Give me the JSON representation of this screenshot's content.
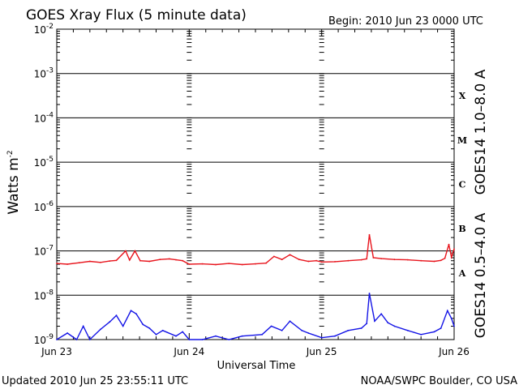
{
  "chart_data": {
    "type": "line",
    "title": "GOES Xray Flux (5 minute data)",
    "begin": "Begin:  2010 Jun 23 0000 UTC",
    "ylabel": "Watts m",
    "ylabel_sup": "-2",
    "xlabel": "Universal Time",
    "updated": "Updated 2010 Jun 25 23:55:11 UTC",
    "credit": "NOAA/SWPC Boulder, CO USA",
    "y_scale": "log",
    "ylim": [
      1e-09,
      0.01
    ],
    "y_ticks": [
      {
        "base": "10",
        "exp": "-2",
        "value": 0.01
      },
      {
        "base": "10",
        "exp": "-3",
        "value": 0.001
      },
      {
        "base": "10",
        "exp": "-4",
        "value": 0.0001
      },
      {
        "base": "10",
        "exp": "-5",
        "value": 1e-05
      },
      {
        "base": "10",
        "exp": "-6",
        "value": 1e-06
      },
      {
        "base": "10",
        "exp": "-7",
        "value": 1e-07
      },
      {
        "base": "10",
        "exp": "-8",
        "value": 1e-08
      },
      {
        "base": "10",
        "exp": "-9",
        "value": 1e-09
      }
    ],
    "x_ticks": [
      "Jun 23",
      "Jun 24",
      "Jun 25",
      "Jun 26"
    ],
    "xlim_days": [
      0,
      3
    ],
    "flare_classes": [
      {
        "label": "X",
        "decade": -4
      },
      {
        "label": "M",
        "decade": -5
      },
      {
        "label": "C",
        "decade": -6
      },
      {
        "label": "B",
        "decade": -7
      },
      {
        "label": "A",
        "decade": -8
      }
    ],
    "grid": true,
    "series": [
      {
        "name": "GOES14 1.0–8.0 A",
        "color": "#e8141c",
        "points": [
          [
            0.0,
            5.2e-08
          ],
          [
            0.08,
            5e-08
          ],
          [
            0.17,
            5.4e-08
          ],
          [
            0.25,
            5.8e-08
          ],
          [
            0.33,
            5.5e-08
          ],
          [
            0.4,
            5.9e-08
          ],
          [
            0.45,
            6.1e-08
          ],
          [
            0.52,
            1e-07
          ],
          [
            0.55,
            6.2e-08
          ],
          [
            0.59,
            1e-07
          ],
          [
            0.63,
            6e-08
          ],
          [
            0.7,
            5.8e-08
          ],
          [
            0.78,
            6.4e-08
          ],
          [
            0.85,
            6.6e-08
          ],
          [
            0.9,
            6.3e-08
          ],
          [
            0.95,
            6e-08
          ],
          [
            1.0,
            5e-08
          ],
          [
            1.1,
            5.1e-08
          ],
          [
            1.2,
            4.9e-08
          ],
          [
            1.3,
            5.2e-08
          ],
          [
            1.4,
            4.9e-08
          ],
          [
            1.5,
            5.1e-08
          ],
          [
            1.58,
            5.3e-08
          ],
          [
            1.64,
            7.5e-08
          ],
          [
            1.7,
            6.4e-08
          ],
          [
            1.76,
            8.2e-08
          ],
          [
            1.83,
            6.4e-08
          ],
          [
            1.9,
            5.8e-08
          ],
          [
            1.96,
            6e-08
          ],
          [
            2.0,
            5.6e-08
          ],
          [
            2.1,
            5.7e-08
          ],
          [
            2.2,
            6e-08
          ],
          [
            2.3,
            6.3e-08
          ],
          [
            2.34,
            6.6e-08
          ],
          [
            2.36,
            2.3e-07
          ],
          [
            2.39,
            7e-08
          ],
          [
            2.45,
            6.7e-08
          ],
          [
            2.55,
            6.4e-08
          ],
          [
            2.65,
            6.3e-08
          ],
          [
            2.75,
            6e-08
          ],
          [
            2.85,
            5.8e-08
          ],
          [
            2.9,
            6.1e-08
          ],
          [
            2.93,
            6.8e-08
          ],
          [
            2.96,
            1.4e-07
          ],
          [
            2.98,
            7.2e-08
          ],
          [
            3.0,
            1.1e-07
          ]
        ]
      },
      {
        "name": "GOES14 0.5–4.0 A",
        "color": "#1414e6",
        "points": [
          [
            0.0,
            1e-09
          ],
          [
            0.08,
            1.4e-09
          ],
          [
            0.15,
            1e-09
          ],
          [
            0.2,
            2e-09
          ],
          [
            0.25,
            1e-09
          ],
          [
            0.33,
            1.7e-09
          ],
          [
            0.4,
            2.5e-09
          ],
          [
            0.45,
            3.5e-09
          ],
          [
            0.5,
            2e-09
          ],
          [
            0.56,
            4.5e-09
          ],
          [
            0.6,
            3.8e-09
          ],
          [
            0.65,
            2.2e-09
          ],
          [
            0.7,
            1.8e-09
          ],
          [
            0.75,
            1.3e-09
          ],
          [
            0.8,
            1.6e-09
          ],
          [
            0.9,
            1.2e-09
          ],
          [
            0.95,
            1.5e-09
          ],
          [
            1.0,
            1e-09
          ],
          [
            1.1,
            1e-09
          ],
          [
            1.2,
            1.2e-09
          ],
          [
            1.3,
            1e-09
          ],
          [
            1.4,
            1.2e-09
          ],
          [
            1.55,
            1.3e-09
          ],
          [
            1.62,
            2e-09
          ],
          [
            1.7,
            1.6e-09
          ],
          [
            1.76,
            2.6e-09
          ],
          [
            1.85,
            1.6e-09
          ],
          [
            1.9,
            1.4e-09
          ],
          [
            2.0,
            1.1e-09
          ],
          [
            2.1,
            1.2e-09
          ],
          [
            2.2,
            1.6e-09
          ],
          [
            2.3,
            1.8e-09
          ],
          [
            2.34,
            2.3e-09
          ],
          [
            2.36,
            1.1e-08
          ],
          [
            2.4,
            2.6e-09
          ],
          [
            2.45,
            3.8e-09
          ],
          [
            2.5,
            2.4e-09
          ],
          [
            2.55,
            2e-09
          ],
          [
            2.65,
            1.6e-09
          ],
          [
            2.75,
            1.3e-09
          ],
          [
            2.85,
            1.5e-09
          ],
          [
            2.9,
            1.8e-09
          ],
          [
            2.95,
            4.5e-09
          ],
          [
            2.98,
            3e-09
          ],
          [
            3.0,
            2e-09
          ]
        ]
      }
    ]
  }
}
